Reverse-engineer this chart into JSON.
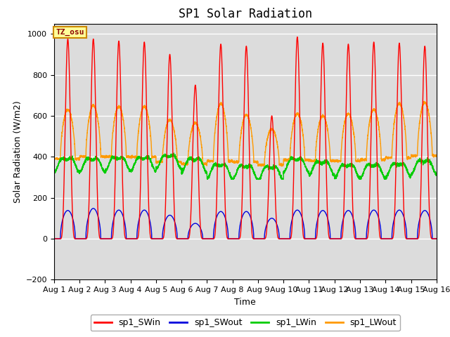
{
  "title": "SP1 Solar Radiation",
  "xlabel": "Time",
  "ylabel": "Solar Radiation (W/m2)",
  "ylim": [
    -200,
    1050
  ],
  "yticks": [
    -200,
    0,
    200,
    400,
    600,
    800,
    1000
  ],
  "n_days": 15,
  "tz_label": "TZ_osu",
  "colors": {
    "sp1_SWin": "#ff0000",
    "sp1_SWout": "#0000dd",
    "sp1_LWin": "#00cc00",
    "sp1_LWout": "#ff9900"
  },
  "bg_color": "#dcdcdc",
  "title_fontsize": 12,
  "label_fontsize": 9,
  "tick_fontsize": 8,
  "sw_in_peaks": [
    975,
    975,
    965,
    960,
    900,
    750,
    950,
    940,
    600,
    985,
    955,
    950,
    960,
    955,
    940
  ],
  "sw_out_peaks": [
    138,
    148,
    140,
    140,
    115,
    75,
    133,
    133,
    100,
    140,
    138,
    138,
    140,
    140,
    138
  ],
  "lw_in_base": [
    370,
    370,
    375,
    375,
    385,
    370,
    340,
    335,
    330,
    370,
    355,
    340,
    340,
    345,
    360
  ],
  "lw_out_peaks": [
    630,
    650,
    645,
    645,
    580,
    565,
    660,
    605,
    535,
    610,
    600,
    610,
    630,
    660,
    665
  ],
  "lw_out_night": [
    390,
    400,
    400,
    400,
    375,
    365,
    380,
    375,
    360,
    385,
    380,
    380,
    385,
    395,
    405
  ]
}
